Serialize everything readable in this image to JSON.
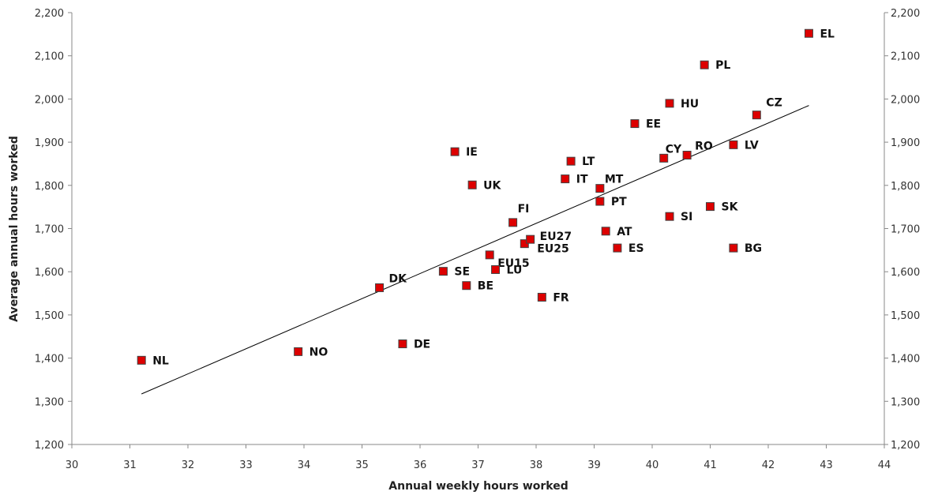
{
  "chart_data": {
    "type": "scatter",
    "xlabel": "Annual weekly hours worked",
    "ylabel": "Average annual hours worked",
    "xlim": [
      30,
      44
    ],
    "ylim": [
      1200,
      2200
    ],
    "x_ticks": [
      "30",
      "31",
      "32",
      "33",
      "34",
      "35",
      "36",
      "37",
      "38",
      "39",
      "40",
      "41",
      "42",
      "43",
      "44"
    ],
    "y_ticks": [
      "1,200",
      "1,300",
      "1,400",
      "1,500",
      "1,600",
      "1,700",
      "1,800",
      "1,900",
      "2,000",
      "2,100",
      "2,200"
    ],
    "y_tick_values": [
      1200,
      1300,
      1400,
      1500,
      1600,
      1700,
      1800,
      1900,
      2000,
      2100,
      2200
    ],
    "x_tick_values": [
      30,
      31,
      32,
      33,
      34,
      35,
      36,
      37,
      38,
      39,
      40,
      41,
      42,
      43,
      44
    ],
    "marker_color": "#dd0000",
    "trendline": {
      "x": [
        31.2,
        42.7
      ],
      "y": [
        1317,
        1985
      ]
    },
    "points": [
      {
        "label": "NL",
        "x": 31.2,
        "y": 1395
      },
      {
        "label": "NO",
        "x": 33.9,
        "y": 1415
      },
      {
        "label": "DE",
        "x": 35.7,
        "y": 1433
      },
      {
        "label": "DK",
        "x": 35.3,
        "y": 1563
      },
      {
        "label": "SE",
        "x": 36.4,
        "y": 1601
      },
      {
        "label": "BE",
        "x": 36.8,
        "y": 1568
      },
      {
        "label": "IE",
        "x": 36.6,
        "y": 1878
      },
      {
        "label": "UK",
        "x": 36.9,
        "y": 1801
      },
      {
        "label": "FI",
        "x": 37.6,
        "y": 1714
      },
      {
        "label": "EU15",
        "x": 37.2,
        "y": 1639
      },
      {
        "label": "LU",
        "x": 37.3,
        "y": 1605
      },
      {
        "label": "EU25",
        "x": 37.8,
        "y": 1665
      },
      {
        "label": "EU27",
        "x": 37.9,
        "y": 1675
      },
      {
        "label": "FR",
        "x": 38.1,
        "y": 1541
      },
      {
        "label": "IT",
        "x": 38.5,
        "y": 1815
      },
      {
        "label": "LT",
        "x": 38.6,
        "y": 1856
      },
      {
        "label": "MT",
        "x": 39.1,
        "y": 1793
      },
      {
        "label": "PT",
        "x": 39.1,
        "y": 1763
      },
      {
        "label": "AT",
        "x": 39.2,
        "y": 1694
      },
      {
        "label": "ES",
        "x": 39.4,
        "y": 1655
      },
      {
        "label": "EE",
        "x": 39.7,
        "y": 1943
      },
      {
        "label": "CY",
        "x": 40.2,
        "y": 1863
      },
      {
        "label": "HU",
        "x": 40.3,
        "y": 1990
      },
      {
        "label": "SI",
        "x": 40.3,
        "y": 1728
      },
      {
        "label": "RO",
        "x": 40.6,
        "y": 1870
      },
      {
        "label": "PL",
        "x": 40.9,
        "y": 2079
      },
      {
        "label": "SK",
        "x": 41.0,
        "y": 1751
      },
      {
        "label": "LV",
        "x": 41.4,
        "y": 1894
      },
      {
        "label": "BG",
        "x": 41.4,
        "y": 1655
      },
      {
        "label": "CZ",
        "x": 41.8,
        "y": 1963
      },
      {
        "label": "EL",
        "x": 42.7,
        "y": 2152
      }
    ]
  }
}
